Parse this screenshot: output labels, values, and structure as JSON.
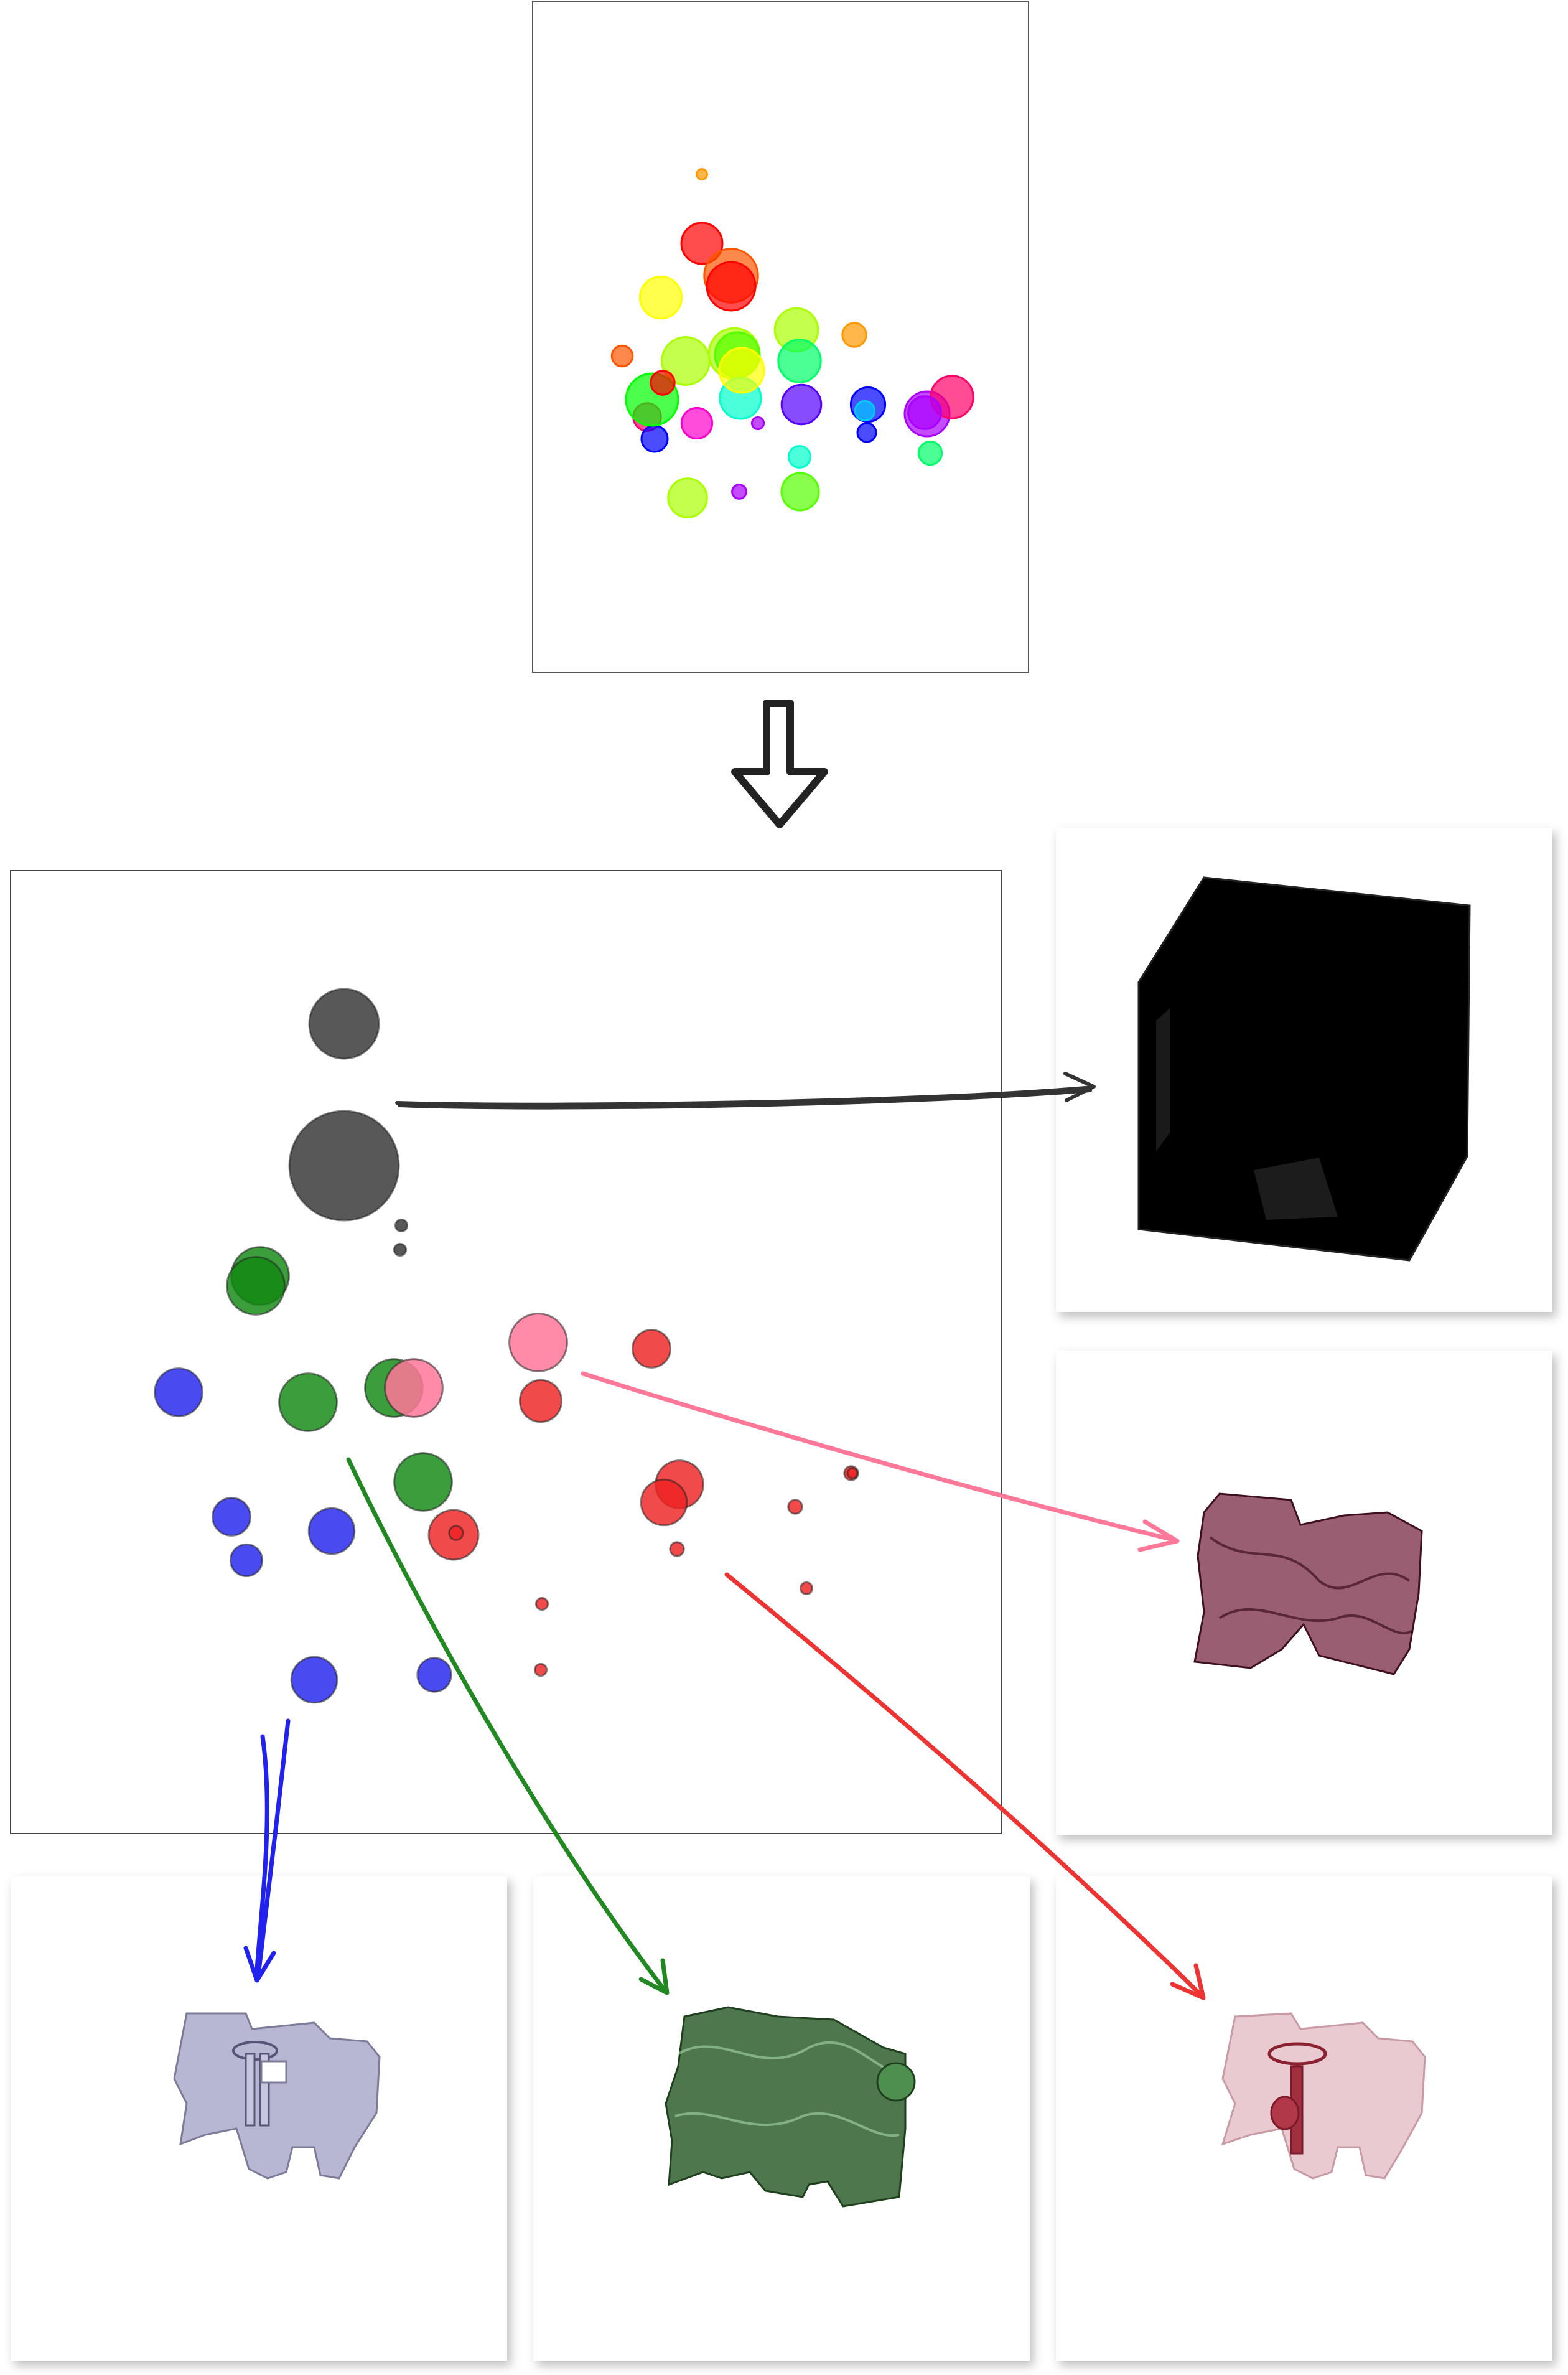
{
  "colors": {
    "dark": "#333333",
    "green": "#118811",
    "pink": "#ff7799",
    "red": "#ee2222",
    "blue": "#2222ee",
    "black": "#000000",
    "maroon": "#6e1a34",
    "lavender": "#aaaacc",
    "forest": "#2f5f2f",
    "rose": "#b06070"
  },
  "top_scatter": {
    "palette": [
      "#ff0000",
      "#ff5500",
      "#ff9900",
      "#ffff00",
      "#aaff00",
      "#55ff00",
      "#00ff00",
      "#00ff66",
      "#00ffcc",
      "#00ccff",
      "#0000ff",
      "#5500ff",
      "#aa00ff",
      "#ff00cc",
      "#ff0066"
    ],
    "circles": [
      [
        2,
        0,
        14
      ],
      [
        0,
        2,
        55
      ],
      [
        1,
        8,
        72
      ],
      [
        0,
        2,
        65
      ],
      [
        3,
        1,
        56
      ],
      [
        4,
        7,
        58
      ],
      [
        2,
        1,
        32
      ],
      [
        1,
        0,
        28
      ],
      [
        4,
        5,
        64
      ],
      [
        4,
        0,
        68
      ],
      [
        5,
        5,
        60
      ],
      [
        7,
        6,
        57
      ],
      [
        8,
        5,
        55
      ],
      [
        10,
        6,
        46
      ],
      [
        9,
        4,
        26
      ],
      [
        12,
        2,
        60
      ],
      [
        14,
        1,
        57
      ],
      [
        14,
        5,
        37
      ],
      [
        13,
        11,
        41
      ],
      [
        12,
        14,
        16
      ],
      [
        10,
        17,
        35
      ],
      [
        10,
        0,
        25
      ],
      [
        12,
        7,
        44
      ],
      [
        11,
        4,
        53
      ],
      [
        8,
        9,
        29
      ],
      [
        7,
        8,
        31
      ],
      [
        5,
        9,
        50
      ],
      [
        12,
        12,
        19
      ],
      [
        4,
        10,
        52
      ],
      [
        6,
        9,
        70
      ],
      [
        3,
        13,
        60
      ],
      [
        0,
        12,
        32
      ]
    ]
  },
  "clusters": [
    {
      "name": "dark",
      "circles": [
        [
          0,
          70
        ],
        [
          0,
          110
        ],
        [
          0,
          12
        ],
        [
          0,
          12
        ]
      ]
    },
    {
      "name": "green",
      "circles": [
        [
          0,
          58
        ],
        [
          0,
          58
        ],
        [
          0,
          58
        ],
        [
          0,
          58
        ],
        [
          0,
          58
        ]
      ]
    },
    {
      "name": "pink",
      "circles": [
        [
          0,
          58
        ],
        [
          0,
          58
        ]
      ]
    },
    {
      "name": "red",
      "circles": [
        [
          0,
          42
        ],
        [
          0,
          48
        ],
        [
          0,
          46
        ],
        [
          0,
          38
        ],
        [
          0,
          50
        ],
        [
          0,
          14
        ],
        [
          0,
          14
        ],
        [
          0,
          14
        ],
        [
          0,
          12
        ],
        [
          0,
          12
        ],
        [
          0,
          12
        ],
        [
          0,
          14
        ],
        [
          0,
          10
        ]
      ]
    },
    {
      "name": "blue",
      "circles": [
        [
          0,
          48
        ],
        [
          0,
          38
        ],
        [
          0,
          32
        ],
        [
          0,
          46
        ],
        [
          0,
          46
        ],
        [
          0,
          34
        ]
      ]
    }
  ],
  "thumbnails": [
    {
      "name": "black-cube",
      "tint": "#000000"
    },
    {
      "name": "maroon-volume",
      "tint": "#6e1a34"
    },
    {
      "name": "lavender-part",
      "tint": "#aaaacc"
    },
    {
      "name": "green-volume",
      "tint": "#2f5f2f"
    },
    {
      "name": "rose-part",
      "tint": "#b06070"
    }
  ]
}
